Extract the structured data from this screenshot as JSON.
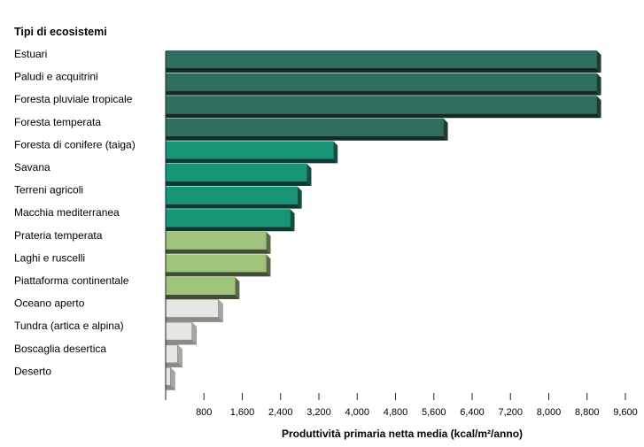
{
  "chart_data": {
    "type": "bar",
    "orientation": "horizontal",
    "title": "Tipi di ecosistemi",
    "xlabel": "Produttività primaria netta media (kcal/m²/anno)",
    "categories": [
      "Estuari",
      "Paludi e acquitrini",
      "Foresta pluviale tropicale",
      "Foresta temperata",
      "Foresta di conifere (taiga)",
      "Savana",
      "Terreni agricoli",
      "Macchia mediterranea",
      "Prateria temperata",
      "Laghi e ruscelli",
      "Piattaforma continentale",
      "Oceano aperto",
      "Tundra (artica e alpina)",
      "Boscaglia desertica",
      "Deserto"
    ],
    "values": [
      9000,
      9000,
      9000,
      5800,
      3500,
      2950,
      2750,
      2600,
      2100,
      2100,
      1450,
      1100,
      550,
      250,
      100
    ],
    "colors": [
      "#2f6e5e",
      "#2f6e5e",
      "#2f6e5e",
      "#2f6e5e",
      "#169577",
      "#169577",
      "#169577",
      "#169577",
      "#a1c47c",
      "#a1c47c",
      "#a1c47c",
      "#e5e8e2",
      "#e5e8e2",
      "#e5e8e2",
      "#e5e8e2"
    ],
    "xticks": [
      800,
      1600,
      2400,
      3200,
      4000,
      4800,
      5600,
      6400,
      7200,
      8000,
      8800,
      9600
    ],
    "xtick_labels": [
      "800",
      "1,600",
      "2,400",
      "3,200",
      "4,000",
      "4,800",
      "5,600",
      "6,400",
      "7,200",
      "8,000",
      "8,800",
      "9,600"
    ],
    "xlim": [
      0,
      9600
    ],
    "grid": false
  }
}
